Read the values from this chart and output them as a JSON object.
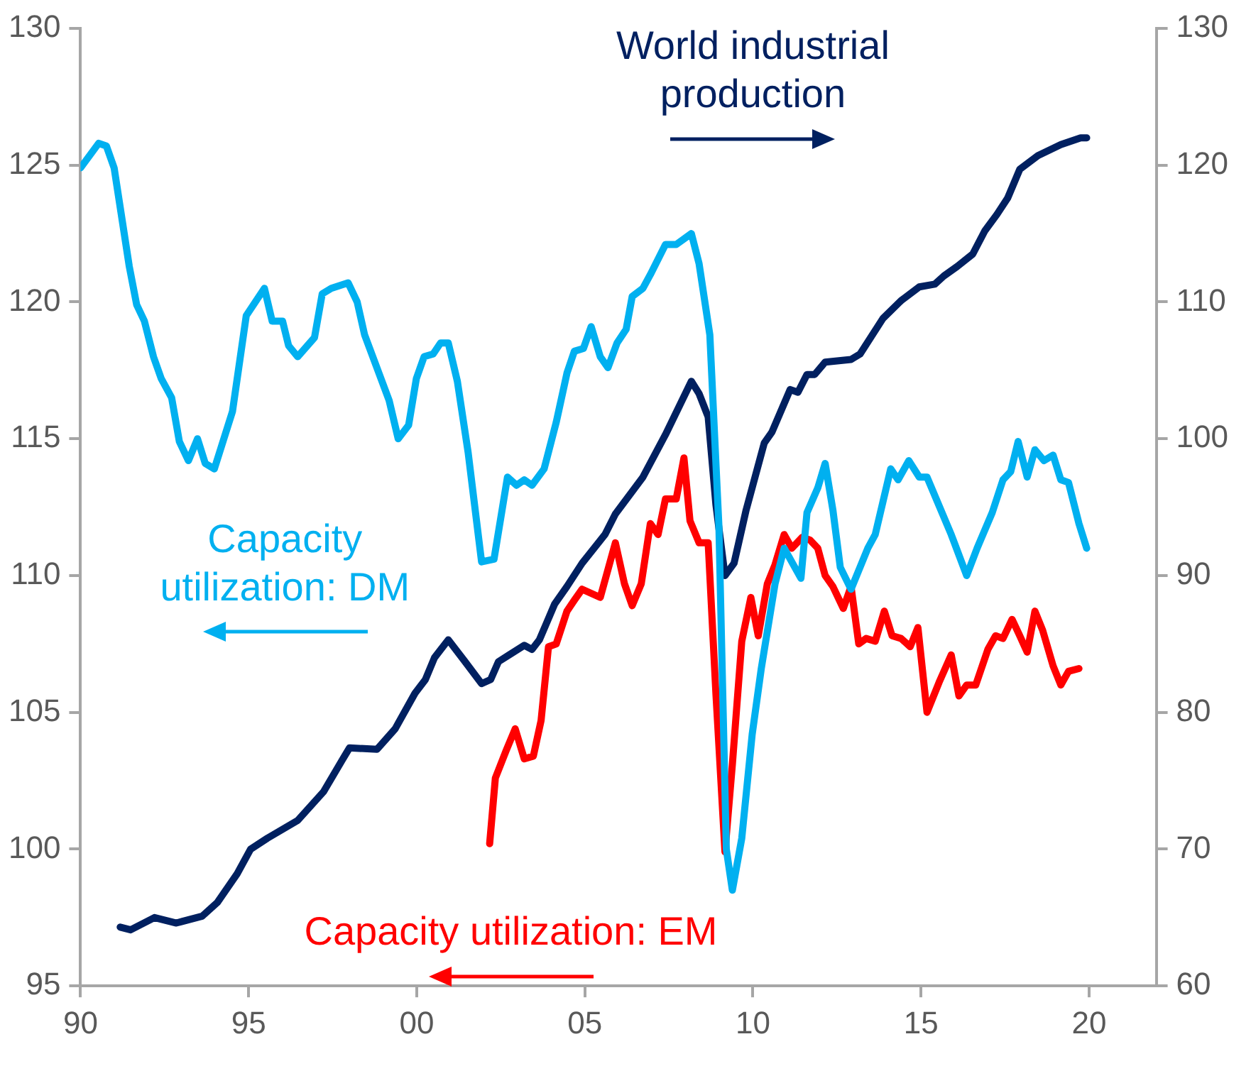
{
  "chart_data": {
    "type": "line",
    "xlim": [
      1990,
      2022
    ],
    "xticks": [
      {
        "value": 1990,
        "label": "90"
      },
      {
        "value": 1995,
        "label": "95"
      },
      {
        "value": 2000,
        "label": "00"
      },
      {
        "value": 2005,
        "label": "05"
      },
      {
        "value": 2010,
        "label": "10"
      },
      {
        "value": 2015,
        "label": "15"
      },
      {
        "value": 2020,
        "label": "20"
      }
    ],
    "ylim": [
      95,
      130
    ],
    "yticks": [
      95,
      100,
      105,
      110,
      115,
      120,
      125,
      130
    ],
    "y2lim": [
      60,
      130
    ],
    "y2ticks": [
      60,
      70,
      80,
      90,
      100,
      110,
      120,
      130
    ],
    "grid": false,
    "legend": false,
    "marker": "none",
    "line_style": "solid",
    "series": [
      {
        "name": "Capacity utilization: DM",
        "color": "#00b0f0",
        "x": [
          1990.0,
          1990.54,
          1990.77,
          1991.0,
          1991.45,
          1991.67,
          1991.9,
          1992.17,
          1992.4,
          1992.71,
          1992.94,
          1993.21,
          1993.48,
          1993.71,
          1993.98,
          1994.52,
          1994.93,
          1995.47,
          1995.7,
          1996.01,
          1996.19,
          1996.46,
          1996.96,
          1997.19,
          1997.46,
          1997.96,
          1998.23,
          1998.45,
          1999.18,
          1999.45,
          1999.76,
          1999.99,
          2000.22,
          2000.49,
          2000.71,
          2000.94,
          2001.21,
          2001.53,
          2001.93,
          2002.3,
          2002.7,
          2002.97,
          2003.2,
          2003.43,
          2003.79,
          2004.15,
          2004.47,
          2004.69,
          2004.96,
          2005.19,
          2005.46,
          2005.69,
          2005.96,
          2006.23,
          2006.41,
          2006.73,
          2006.95,
          2007.4,
          2007.72,
          2008.17,
          2008.4,
          2008.72,
          2008.99,
          2009.21,
          2009.39,
          2009.67,
          2009.98,
          2010.25,
          2010.66,
          2010.93,
          2011.43,
          2011.61,
          2011.93,
          2012.15,
          2012.38,
          2012.6,
          2012.92,
          2013.42,
          2013.64,
          2014.1,
          2014.32,
          2014.64,
          2014.95,
          2015.18,
          2015.9,
          2016.36,
          2016.67,
          2017.12,
          2017.44,
          2017.67,
          2017.89,
          2018.16,
          2018.39,
          2018.66,
          2018.93,
          2019.16,
          2019.39,
          2019.7,
          2019.93
        ],
        "values": [
          124.9,
          125.8,
          125.7,
          124.9,
          121.3,
          119.9,
          119.3,
          118.0,
          117.2,
          116.5,
          114.9,
          114.2,
          115.0,
          114.1,
          113.9,
          116.0,
          119.5,
          120.5,
          119.3,
          119.3,
          118.4,
          118.0,
          118.7,
          120.3,
          120.5,
          120.7,
          120.0,
          118.8,
          116.4,
          115.0,
          115.5,
          117.2,
          118.0,
          118.1,
          118.5,
          118.5,
          117.1,
          114.5,
          110.5,
          110.6,
          113.6,
          113.3,
          113.5,
          113.3,
          113.9,
          115.6,
          117.4,
          118.2,
          118.3,
          119.1,
          118.0,
          117.6,
          118.5,
          119.0,
          120.2,
          120.5,
          121.0,
          122.1,
          122.1,
          122.5,
          121.4,
          118.8,
          111.8,
          100.0,
          98.5,
          100.4,
          104.2,
          106.6,
          109.7,
          111.0,
          109.9,
          112.3,
          113.2,
          114.1,
          112.4,
          110.3,
          109.5,
          111.0,
          111.5,
          113.9,
          113.5,
          114.2,
          113.6,
          113.6,
          111.5,
          110.0,
          111.0,
          112.3,
          113.5,
          113.8,
          114.9,
          113.6,
          114.6,
          114.2,
          114.4,
          113.5,
          113.4,
          111.9,
          111.0
        ]
      },
      {
        "name": "Capacity utilization: EM",
        "color": "#ff0000",
        "x": [
          2002.17,
          2002.34,
          2002.66,
          2002.93,
          2003.2,
          2003.47,
          2003.7,
          2003.92,
          2004.15,
          2004.47,
          2004.69,
          2004.92,
          2005.46,
          2005.91,
          2006.18,
          2006.41,
          2006.68,
          2006.95,
          2007.18,
          2007.4,
          2007.72,
          2007.95,
          2008.13,
          2008.4,
          2008.67,
          2008.9,
          2009.17,
          2009.39,
          2009.67,
          2009.94,
          2010.16,
          2010.43,
          2010.66,
          2010.93,
          2011.16,
          2011.47,
          2011.7,
          2011.93,
          2012.15,
          2012.38,
          2012.69,
          2012.92,
          2013.15,
          2013.37,
          2013.64,
          2013.91,
          2014.14,
          2014.41,
          2014.68,
          2014.91,
          2015.18,
          2015.54,
          2015.9,
          2016.13,
          2016.36,
          2016.63,
          2016.99,
          2017.22,
          2017.44,
          2017.71,
          2017.94,
          2018.16,
          2018.39,
          2018.62,
          2018.93,
          2019.16,
          2019.39,
          2019.7
        ],
        "values": [
          100.2,
          102.6,
          103.6,
          104.4,
          103.3,
          103.4,
          104.7,
          107.4,
          107.5,
          108.7,
          109.1,
          109.5,
          109.2,
          111.2,
          109.7,
          108.9,
          109.7,
          111.9,
          111.5,
          112.8,
          112.8,
          114.3,
          112.0,
          111.2,
          111.2,
          105.7,
          99.9,
          103.1,
          107.6,
          109.2,
          107.8,
          109.7,
          110.4,
          111.5,
          111.0,
          111.4,
          111.3,
          111.0,
          110.0,
          109.6,
          108.8,
          109.6,
          107.5,
          107.7,
          107.6,
          108.7,
          107.8,
          107.7,
          107.4,
          108.1,
          105.0,
          106.1,
          107.1,
          105.6,
          106.0,
          106.0,
          107.3,
          107.8,
          107.7,
          108.4,
          107.8,
          107.2,
          108.7,
          108.0,
          106.7,
          106.0,
          106.5,
          106.6
        ]
      },
      {
        "name": "World industrial production",
        "color": "#002060",
        "axis": "y2",
        "x": [
          1991.18,
          1991.49,
          1992.2,
          1992.85,
          1993.62,
          1994.07,
          1994.66,
          1995.06,
          1995.56,
          1996.46,
          1997.23,
          1997.78,
          1998.0,
          1998.82,
          1999.36,
          1999.95,
          2000.26,
          2000.53,
          2000.94,
          2001.44,
          2001.93,
          2002.2,
          2002.43,
          2002.75,
          2003.2,
          2003.43,
          2003.65,
          2004.1,
          2004.47,
          2004.92,
          2005.6,
          2005.91,
          2006.73,
          2007.4,
          2008.17,
          2008.4,
          2008.67,
          2008.9,
          2009.17,
          2009.44,
          2009.8,
          2010.34,
          2010.57,
          2011.11,
          2011.34,
          2011.61,
          2011.84,
          2012.15,
          2012.92,
          2013.19,
          2013.87,
          2014.41,
          2014.95,
          2015.41,
          2015.68,
          2016.08,
          2016.54,
          2016.9,
          2017.26,
          2017.58,
          2017.94,
          2018.48,
          2019.16,
          2019.75,
          2019.93
        ],
        "values": [
          64.3,
          64.1,
          65.0,
          64.6,
          65.1,
          66.1,
          68.2,
          70.0,
          70.8,
          72.1,
          74.2,
          76.5,
          77.4,
          77.3,
          78.8,
          81.4,
          82.4,
          84.0,
          85.3,
          83.7,
          82.1,
          82.4,
          83.7,
          84.2,
          84.9,
          84.6,
          85.3,
          87.9,
          89.2,
          90.9,
          93.0,
          94.5,
          97.2,
          100.3,
          104.2,
          103.3,
          101.6,
          95.2,
          90.0,
          90.9,
          94.8,
          99.7,
          100.5,
          103.6,
          103.4,
          104.7,
          104.7,
          105.6,
          105.8,
          106.2,
          108.8,
          110.1,
          111.1,
          111.3,
          111.9,
          112.6,
          113.5,
          115.2,
          116.4,
          117.6,
          119.7,
          120.7,
          121.5,
          122.0,
          122.0
        ]
      }
    ]
  }
}
